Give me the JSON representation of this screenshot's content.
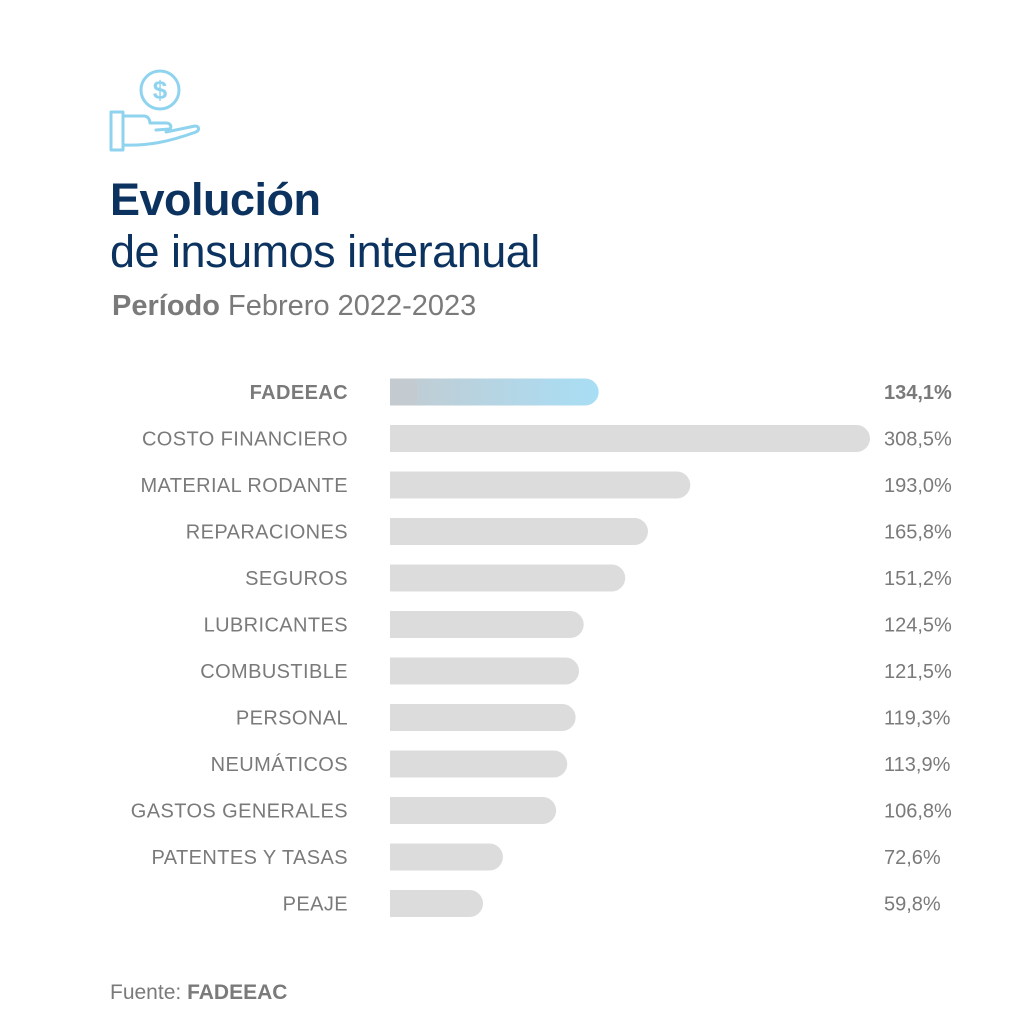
{
  "header": {
    "title_line1": "Evolución",
    "title_line2": "de insumos interanual",
    "subtitle_bold": "Período",
    "subtitle_rest": " Febrero 2022-2023",
    "icon": "hand-dollar-icon"
  },
  "footer": {
    "source_label": "Fuente: ",
    "source_name": "FADEEAC"
  },
  "colors": {
    "title": "#0c3360",
    "text": "#7a7a7a",
    "bar": "#dcdcdc",
    "highlight_start": "#c3cbd1",
    "highlight_end": "#a8def5",
    "icon": "#8fd3ef"
  },
  "chart_data": {
    "type": "bar",
    "orientation": "horizontal",
    "categories": [
      "FADEEAC",
      "COSTO FINANCIERO",
      "MATERIAL RODANTE",
      "REPARACIONES",
      "SEGUROS",
      "LUBRICANTES",
      "COMBUSTIBLE",
      "PERSONAL",
      "NEUMÁTICOS",
      "GASTOS GENERALES",
      "PATENTES Y TASAS",
      "PEAJE"
    ],
    "values": [
      134.1,
      308.5,
      193.0,
      165.8,
      151.2,
      124.5,
      121.5,
      119.3,
      113.9,
      106.8,
      72.6,
      59.8
    ],
    "value_labels": [
      "134,1%",
      "308,5%",
      "193,0%",
      "165,8%",
      "151,2%",
      "124,5%",
      "121,5%",
      "119,3%",
      "113,9%",
      "106,8%",
      "72,6%",
      "59,8%"
    ],
    "highlight": "FADEEAC",
    "xlim": [
      0,
      308.5
    ],
    "grid": false,
    "legend": "none"
  }
}
